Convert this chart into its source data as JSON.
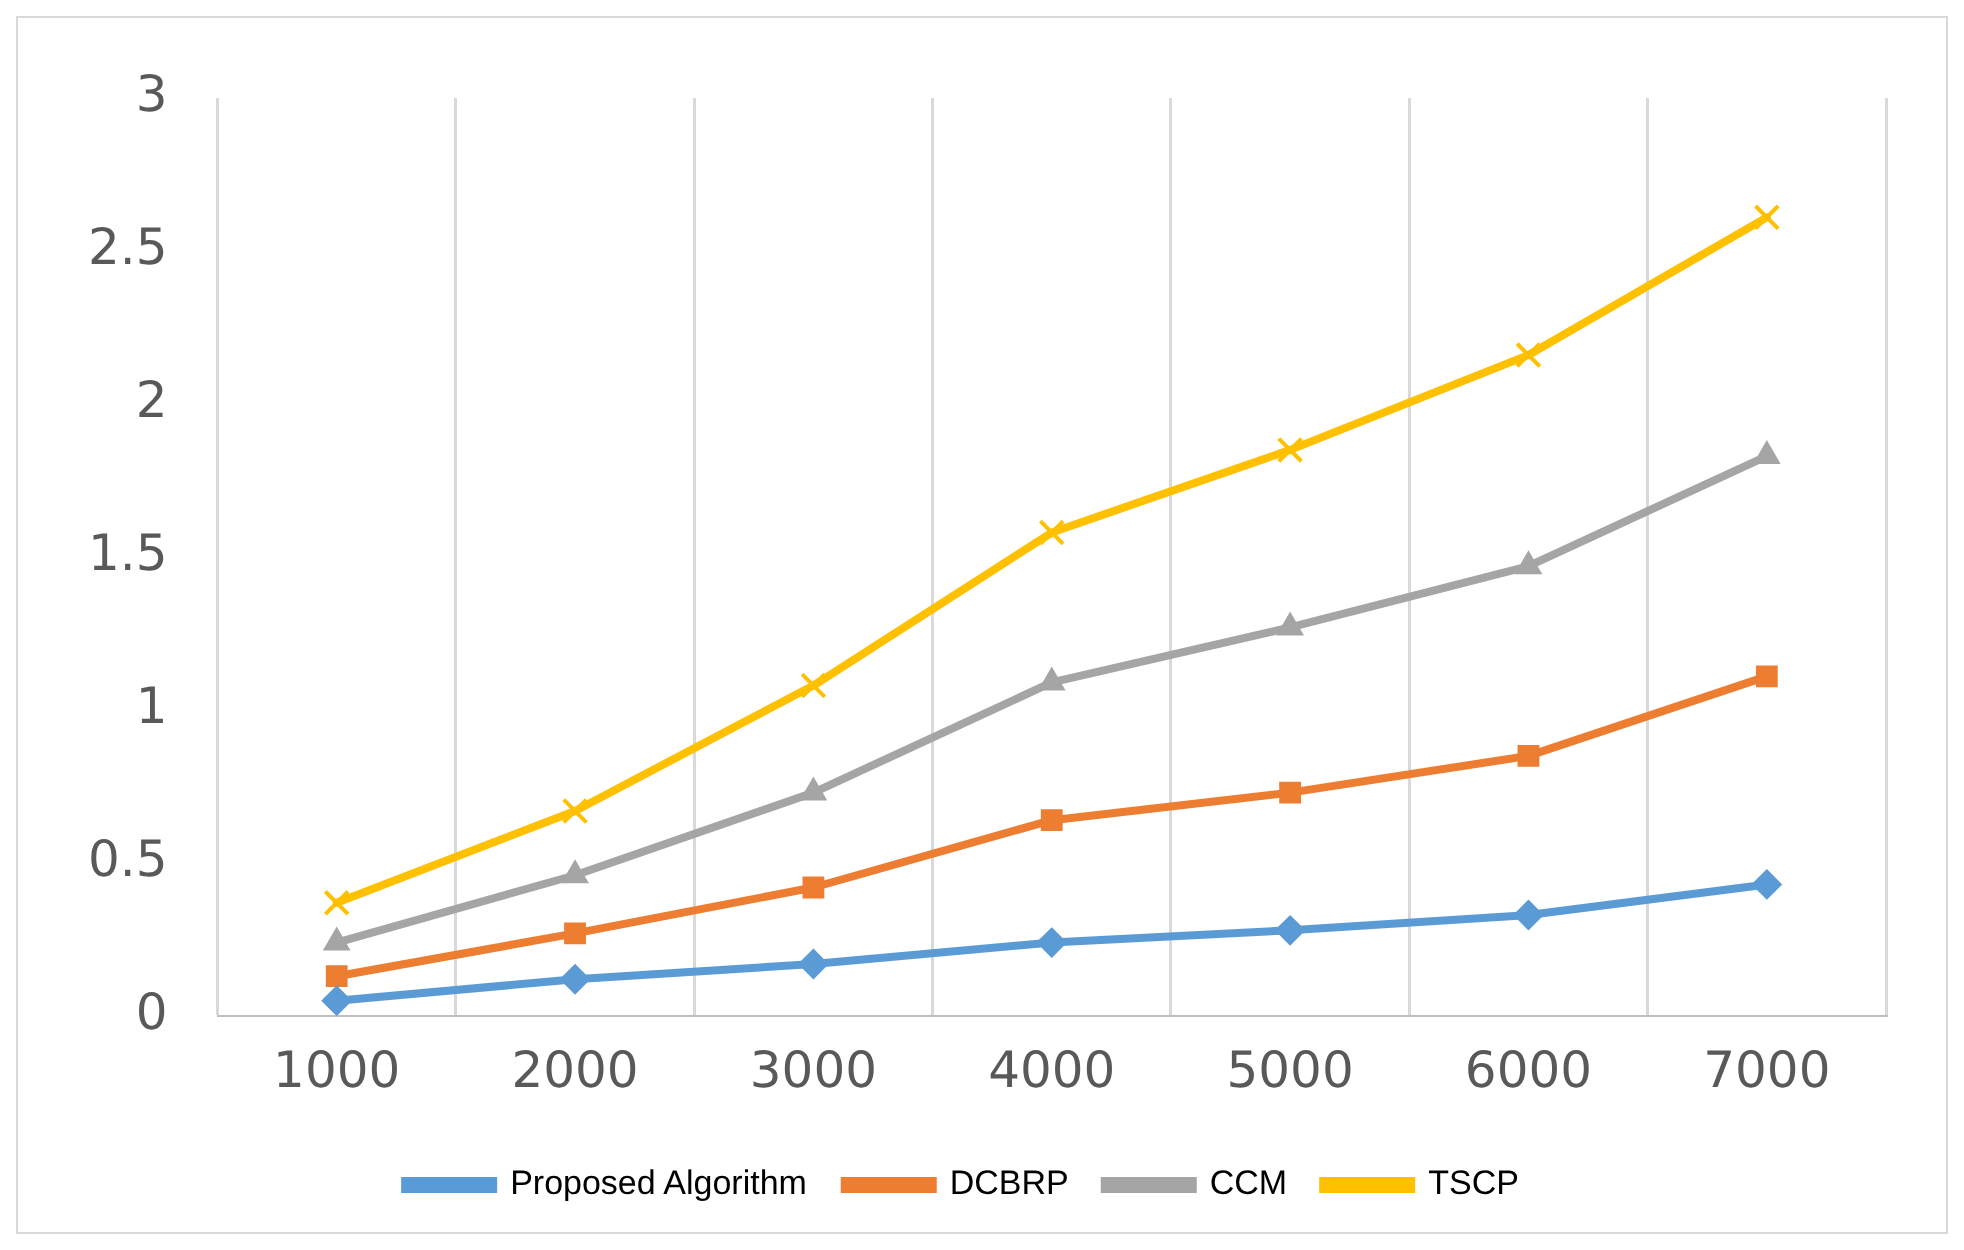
{
  "chart_data": {
    "type": "line",
    "categories": [
      "1000",
      "2000",
      "3000",
      "4000",
      "5000",
      "6000",
      "7000"
    ],
    "series": [
      {
        "name": "Proposed Algorithm",
        "color": "#5b9bd5",
        "marker": "diamond",
        "values": [
          0.05,
          0.12,
          0.17,
          0.24,
          0.28,
          0.33,
          0.43
        ]
      },
      {
        "name": "DCBRP",
        "color": "#ed7d31",
        "marker": "square",
        "values": [
          0.13,
          0.27,
          0.42,
          0.64,
          0.73,
          0.85,
          1.11
        ]
      },
      {
        "name": "CCM",
        "color": "#a5a5a5",
        "marker": "triangle",
        "values": [
          0.24,
          0.46,
          0.73,
          1.09,
          1.27,
          1.47,
          1.83
        ]
      },
      {
        "name": "TSCP",
        "color": "#ffc000",
        "marker": "cross",
        "values": [
          0.37,
          0.67,
          1.08,
          1.58,
          1.85,
          2.16,
          2.61
        ]
      }
    ],
    "ylim": [
      0,
      3
    ],
    "yticks": [
      0,
      0.5,
      1,
      1.5,
      2,
      2.5,
      3
    ],
    "grid": "x",
    "legend": "bottom",
    "line_style": "solid"
  }
}
